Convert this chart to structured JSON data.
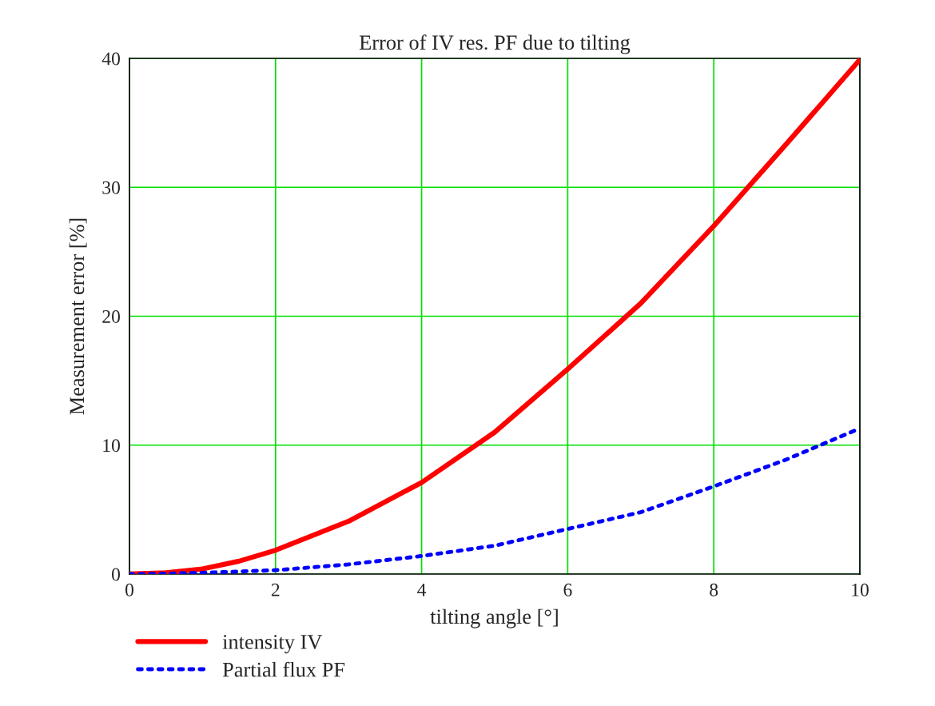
{
  "chart_data": {
    "type": "line",
    "title": "Error of IV res. PF due to tilting",
    "xlabel": "tilting angle [°]",
    "ylabel": "Measurement error [%]",
    "x": [
      0,
      0.5,
      1,
      1.5,
      2,
      3,
      4,
      5,
      6,
      7,
      8,
      9,
      10
    ],
    "series": [
      {
        "name": "intensity IV",
        "color": "#ff0000",
        "line_style": "solid",
        "values": [
          0,
          0.1,
          0.4,
          1.0,
          1.85,
          4.1,
          7.1,
          11.0,
          15.9,
          21.0,
          27.0,
          33.4,
          39.9
        ]
      },
      {
        "name": "Partial flux PF",
        "color": "#0000ff",
        "line_style": "dotted",
        "values": [
          0,
          0.03,
          0.1,
          0.2,
          0.3,
          0.75,
          1.4,
          2.2,
          3.5,
          4.8,
          6.8,
          8.9,
          11.3
        ]
      }
    ],
    "xlim": [
      0,
      10
    ],
    "ylim": [
      0,
      40
    ],
    "xticks": [
      0,
      2,
      4,
      6,
      8,
      10
    ],
    "yticks": [
      0,
      10,
      20,
      30,
      40
    ],
    "grid": true,
    "legend": "bottom left",
    "marker": "none"
  }
}
